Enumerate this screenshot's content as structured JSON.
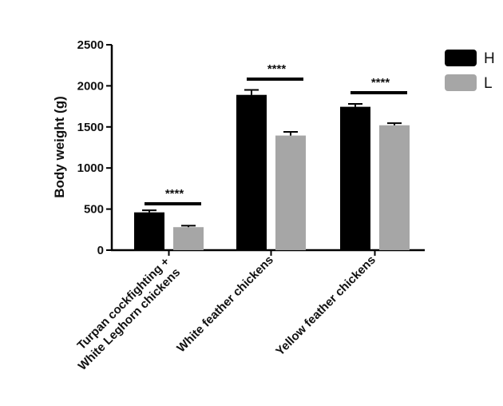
{
  "chart_data": {
    "type": "bar",
    "title": "",
    "ylabel": "Body weight (g)",
    "xlabel": "",
    "ylim": [
      0,
      2500
    ],
    "yticks": [
      0,
      500,
      1000,
      1500,
      2000,
      2500
    ],
    "categories": [
      [
        "Turpan cockfighting +",
        "White Leghorn chickens"
      ],
      [
        "White feather chickens"
      ],
      [
        "Yellow feather chickens"
      ]
    ],
    "series": [
      {
        "name": "H",
        "color": "#000000",
        "values": [
          460,
          1890,
          1745
        ],
        "errors": [
          25,
          60,
          35
        ]
      },
      {
        "name": "L",
        "color": "#a6a6a6",
        "values": [
          280,
          1395,
          1520
        ],
        "errors": [
          18,
          45,
          25
        ]
      }
    ],
    "significance": [
      "****",
      "****",
      "****"
    ],
    "legend": "top-right",
    "grid": false
  }
}
